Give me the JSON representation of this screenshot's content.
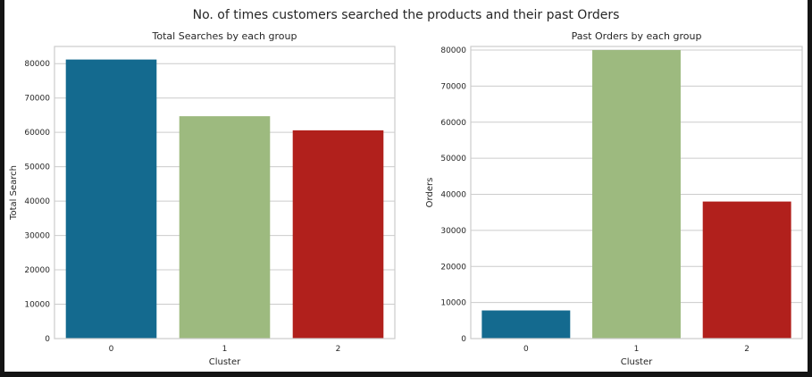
{
  "suptitle": "No. of times customers searched the products and their past Orders",
  "chart_data": [
    {
      "type": "bar",
      "title": "Total Searches by each group",
      "xlabel": "Cluster",
      "ylabel": "Total Search",
      "categories": [
        "0",
        "1",
        "2"
      ],
      "values": [
        81200,
        64700,
        60600
      ],
      "colors": [
        "#146a8f",
        "#9dba7f",
        "#b1201c"
      ],
      "ylim": [
        0,
        85000
      ],
      "yticks": [
        0,
        10000,
        20000,
        30000,
        40000,
        50000,
        60000,
        70000,
        80000
      ],
      "grid": true
    },
    {
      "type": "bar",
      "title": "Past Orders by each group",
      "xlabel": "Cluster",
      "ylabel": "Orders",
      "categories": [
        "0",
        "1",
        "2"
      ],
      "values": [
        7800,
        80000,
        38000
      ],
      "colors": [
        "#146a8f",
        "#9dba7f",
        "#b1201c"
      ],
      "ylim": [
        0,
        81000
      ],
      "yticks": [
        0,
        10000,
        20000,
        30000,
        40000,
        50000,
        60000,
        70000,
        80000
      ],
      "grid": true
    }
  ]
}
